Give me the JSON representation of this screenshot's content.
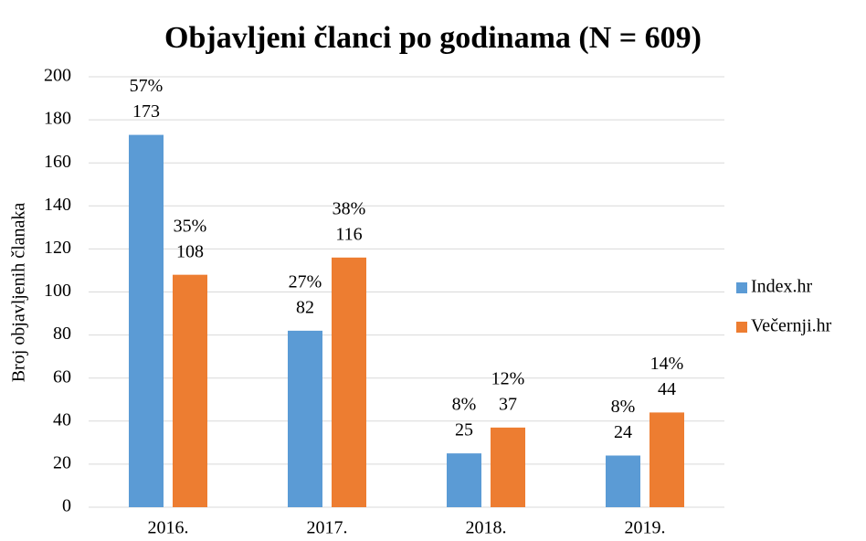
{
  "chart_data": {
    "type": "bar",
    "title": "Objavljeni članci po godinama (N = 609)",
    "y_label": "Broj objavljenih članaka",
    "categories": [
      "2016.",
      "2017.",
      "2018.",
      "2019."
    ],
    "series": [
      {
        "name": "Index.hr",
        "color": "#5b9bd5",
        "values": [
          173,
          82,
          25,
          24
        ],
        "share_labels": [
          "57%",
          "27%",
          "8%",
          "8%"
        ]
      },
      {
        "name": "Večernji.hr",
        "color": "#ed7d31",
        "values": [
          108,
          116,
          37,
          44
        ],
        "share_labels": [
          "35%",
          "38%",
          "12%",
          "14%"
        ]
      }
    ],
    "ylim": [
      0,
      200
    ],
    "yticks": [
      0,
      20,
      40,
      60,
      80,
      100,
      120,
      140,
      160,
      180,
      200
    ],
    "grid": true,
    "legend": "right"
  }
}
